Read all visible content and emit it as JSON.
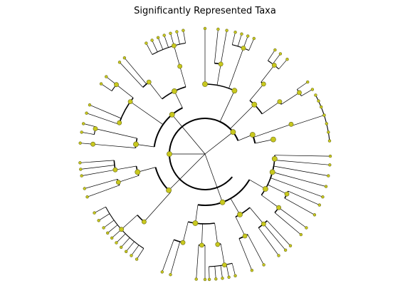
{
  "figure": {
    "title": "Significantly Represented Taxa"
  },
  "diagram": {
    "type": "circular-cladogram",
    "node_color": "#c8c81e",
    "node_stroke": "#6b6b1a",
    "edge_color": "#000000"
  }
}
